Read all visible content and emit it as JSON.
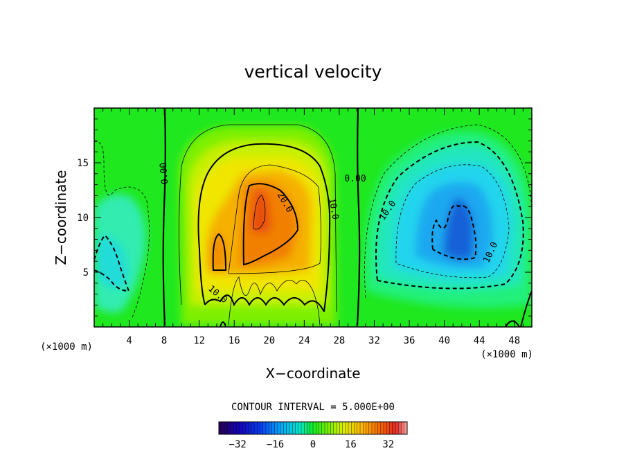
{
  "chart_data": {
    "type": "heatmap",
    "title": "vertical velocity",
    "xlabel": "X−coordinate",
    "ylabel": "Z−coordinate",
    "x_unit_label": "(×1000 m)",
    "xlim": [
      0,
      50
    ],
    "ylim": [
      0,
      20
    ],
    "x_ticks": [
      4,
      8,
      12,
      16,
      20,
      24,
      28,
      32,
      36,
      40,
      44,
      48
    ],
    "x_tick_labels": [
      "4",
      "8",
      "12",
      "16",
      "20",
      "24",
      "28",
      "32",
      "36",
      "40",
      "44",
      "48"
    ],
    "y_ticks": [
      5,
      10,
      15
    ],
    "y_tick_labels": [
      "5",
      "10",
      "15"
    ],
    "contour_interval_text": "CONTOUR INTERVAL = 5.000E+00",
    "contour_labels": [
      "0.00",
      "0.00",
      "10.0",
      "20.0",
      "10.0",
      "10.0",
      "10.0"
    ],
    "colorbar": {
      "min": -40,
      "max": 40,
      "ticks": [
        -32,
        -16,
        0,
        16,
        32
      ],
      "tick_labels": [
        "−32",
        "−16",
        "0",
        "16",
        "32"
      ]
    },
    "features": [
      {
        "kind": "updraft",
        "x_center": 20,
        "z_center": 9,
        "peak": 28
      },
      {
        "kind": "downdraft",
        "x_center": 42,
        "z_center": 9,
        "peak": -24
      },
      {
        "kind": "weak-downdraft",
        "x_center": 3,
        "z_center": 7,
        "peak": -8
      }
    ]
  }
}
